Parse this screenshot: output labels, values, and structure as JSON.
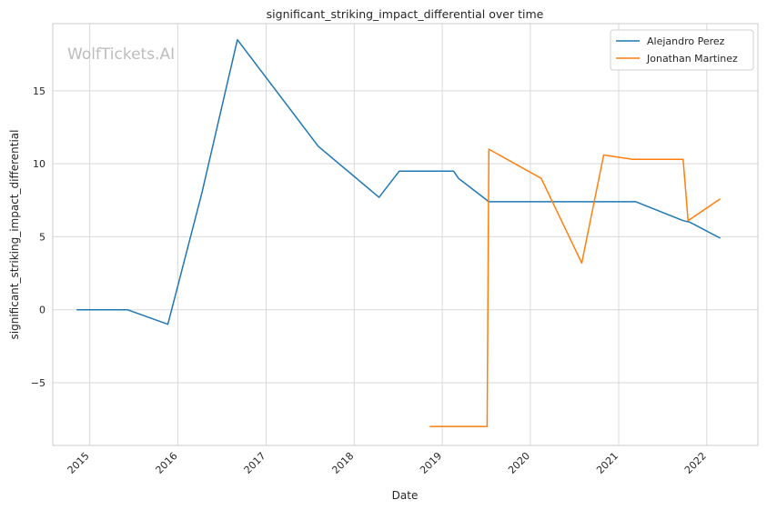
{
  "chart_data": {
    "type": "line",
    "title": "significant_striking_impact_differential over time",
    "xlabel": "Date",
    "ylabel": "significant_striking_impact_differential",
    "watermark": "WolfTickets.AI",
    "x_ticks": [
      "2015",
      "2016",
      "2017",
      "2018",
      "2019",
      "2020",
      "2021",
      "2022"
    ],
    "y_ticks": [
      -5,
      0,
      5,
      10,
      15
    ],
    "xlim": [
      "2014-08-01",
      "2022-08-01"
    ],
    "ylim": [
      -9.3,
      19.6
    ],
    "grid": true,
    "legend_position": "top-right",
    "series": [
      {
        "name": "Alejandro Perez",
        "color": "#1f77b4",
        "points": [
          [
            "2014-11-08",
            0.0
          ],
          [
            "2015-06-06",
            0.0
          ],
          [
            "2015-11-21",
            -1.0
          ],
          [
            "2016-04-10",
            8.0
          ],
          [
            "2016-09-04",
            18.5
          ],
          [
            "2016-10-29",
            17.3
          ],
          [
            "2017-08-05",
            11.2
          ],
          [
            "2018-04-14",
            7.7
          ],
          [
            "2018-07-07",
            9.5
          ],
          [
            "2019-02-17",
            9.5
          ],
          [
            "2019-03-09",
            9.0
          ],
          [
            "2019-07-13",
            7.4
          ],
          [
            "2021-03-13",
            7.4
          ],
          [
            "2021-09-25",
            6.1
          ],
          [
            "2021-10-23",
            6.0
          ],
          [
            "2022-02-26",
            4.9
          ]
        ]
      },
      {
        "name": "Jonathan Martinez",
        "color": "#ff7f0e",
        "points": [
          [
            "2018-11-10",
            -8.0
          ],
          [
            "2019-07-06",
            -8.0
          ],
          [
            "2019-07-13",
            11.0
          ],
          [
            "2020-02-15",
            9.0
          ],
          [
            "2020-08-01",
            3.2
          ],
          [
            "2020-10-31",
            10.6
          ],
          [
            "2021-02-27",
            10.3
          ],
          [
            "2021-09-25",
            10.3
          ],
          [
            "2021-10-16",
            6.1
          ],
          [
            "2022-02-26",
            7.6
          ]
        ]
      }
    ]
  }
}
